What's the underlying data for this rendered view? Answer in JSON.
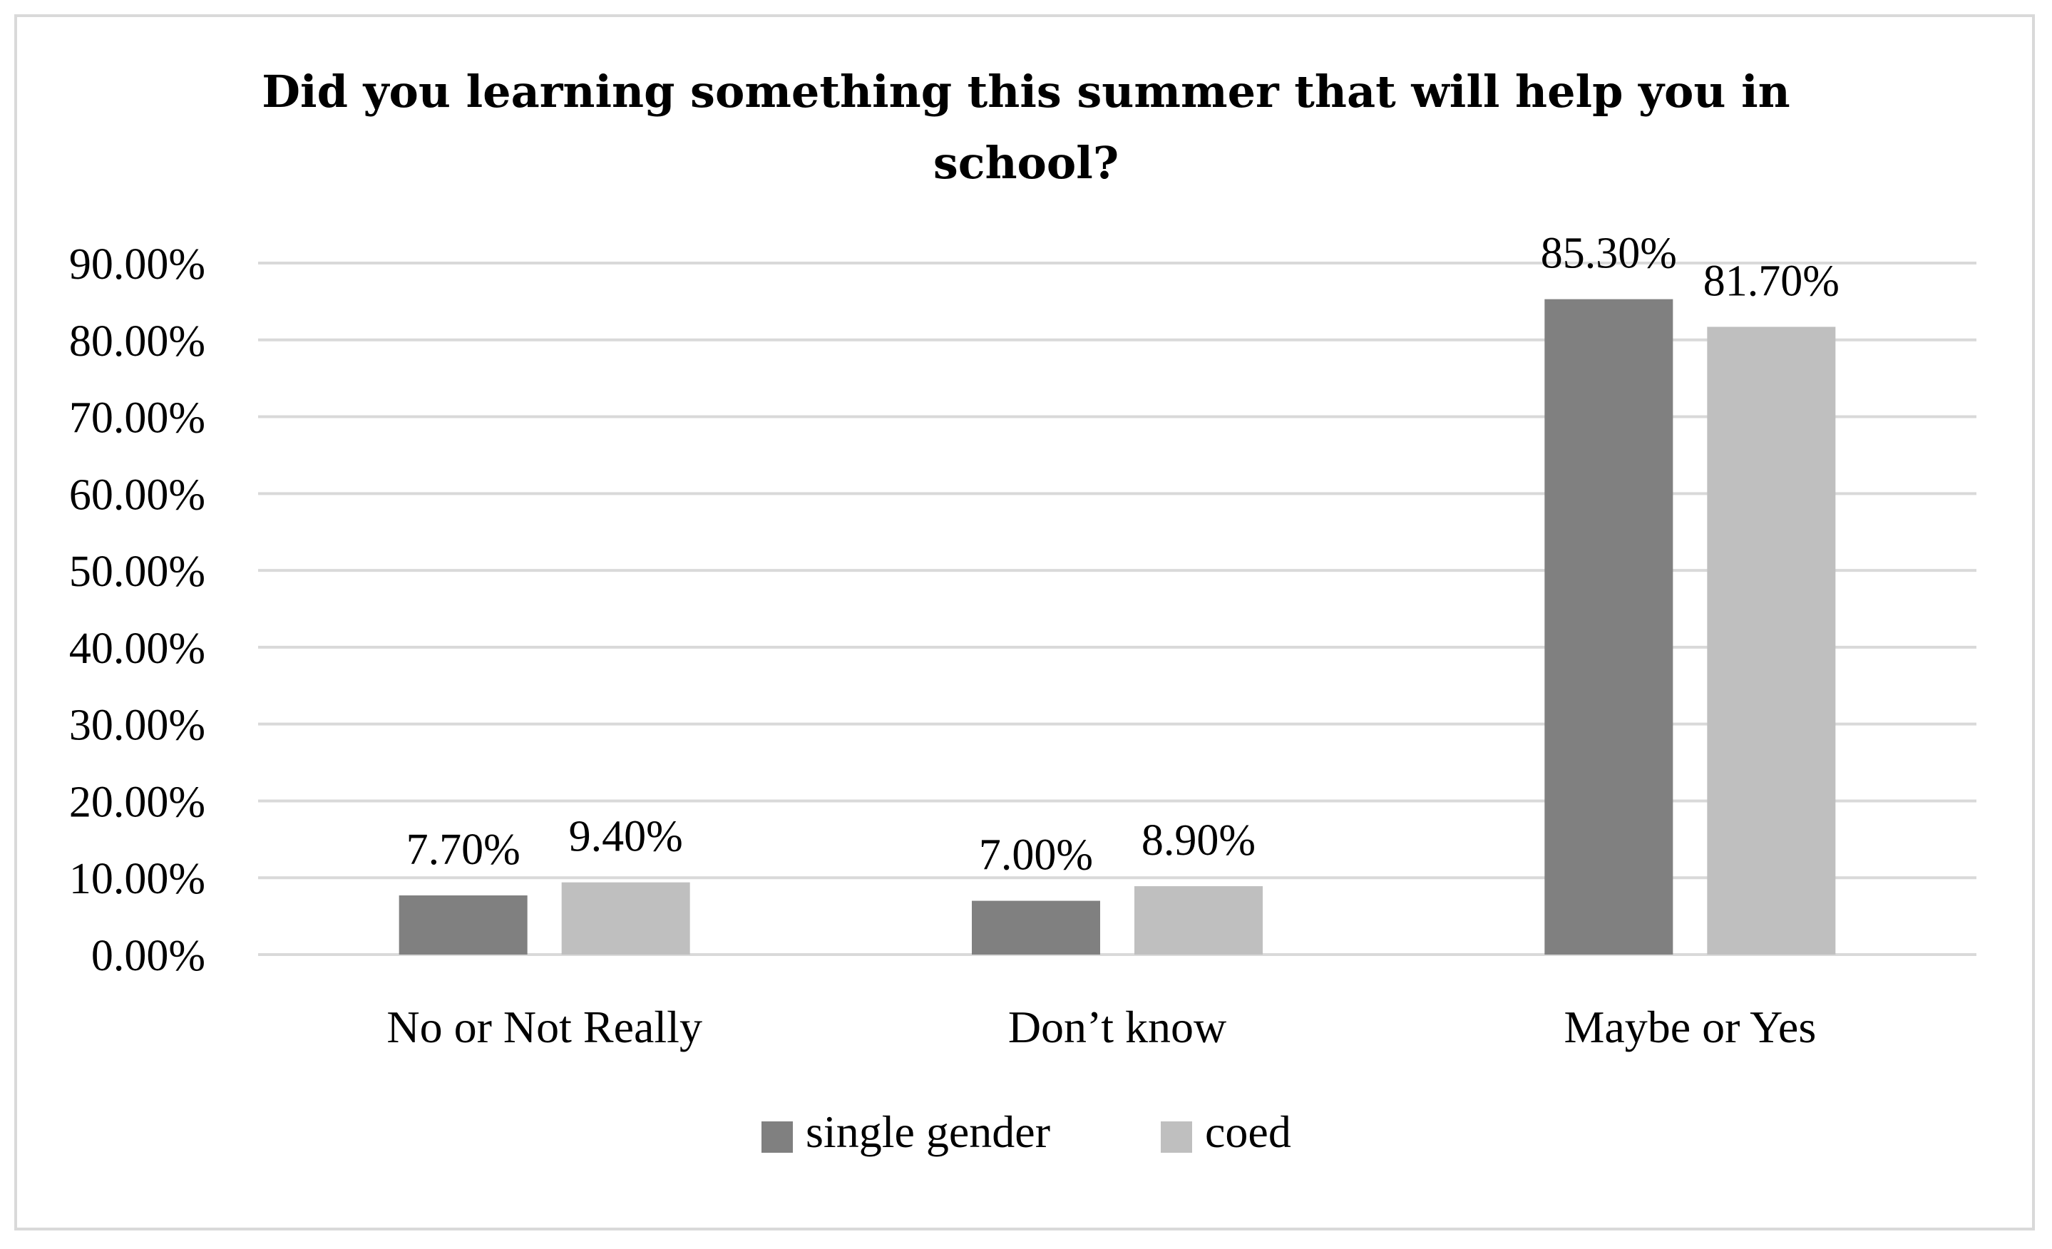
{
  "chart_data": {
    "type": "bar",
    "title_lines": [
      "Did you learning something this summer that will help you in",
      "school?"
    ],
    "categories": [
      "No or Not Really",
      "Don’t know",
      "Maybe or Yes"
    ],
    "series": [
      {
        "name": "single gender",
        "color": "#808080",
        "values": [
          7.7,
          7.0,
          85.3
        ],
        "labels": [
          "7.70%",
          "7.00%",
          "85.30%"
        ]
      },
      {
        "name": "coed",
        "color": "#bfbfbf",
        "values": [
          9.4,
          8.9,
          81.7
        ],
        "labels": [
          "9.40%",
          "8.90%",
          "81.70%"
        ]
      }
    ],
    "ylim": [
      0,
      90
    ],
    "yticks": [
      0,
      10,
      20,
      30,
      40,
      50,
      60,
      70,
      80,
      90
    ],
    "ytick_labels": [
      "0.00%",
      "10.00%",
      "20.00%",
      "30.00%",
      "40.00%",
      "50.00%",
      "60.00%",
      "70.00%",
      "80.00%",
      "90.00%"
    ],
    "grid": true,
    "gridline_color": "#d9d9d9",
    "legend_position": "bottom",
    "xlabel": "",
    "ylabel": ""
  }
}
